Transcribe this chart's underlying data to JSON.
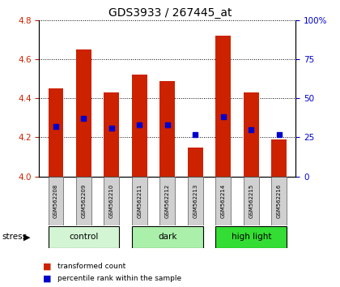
{
  "title": "GDS3933 / 267445_at",
  "samples": [
    "GSM562208",
    "GSM562209",
    "GSM562210",
    "GSM562211",
    "GSM562212",
    "GSM562213",
    "GSM562214",
    "GSM562215",
    "GSM562216"
  ],
  "transformed_counts": [
    4.45,
    4.65,
    4.43,
    4.52,
    4.49,
    4.15,
    4.72,
    4.43,
    4.19
  ],
  "percentile_ranks": [
    32,
    37,
    31,
    33,
    33,
    27,
    38,
    30,
    27
  ],
  "ylim_left": [
    4.0,
    4.8
  ],
  "ylim_right": [
    0,
    100
  ],
  "yticks_left": [
    4.0,
    4.2,
    4.4,
    4.6,
    4.8
  ],
  "yticks_right": [
    0,
    25,
    50,
    75,
    100
  ],
  "bar_color": "#cc2200",
  "dot_color": "#0000cc",
  "bar_width": 0.55,
  "groups": [
    {
      "label": "control",
      "start": 0,
      "end": 3,
      "color": "#d4f5d4"
    },
    {
      "label": "dark",
      "start": 3,
      "end": 6,
      "color": "#aaf0aa"
    },
    {
      "label": "high light",
      "start": 6,
      "end": 9,
      "color": "#33dd33"
    }
  ],
  "stress_label": "stress",
  "tick_label_color_left": "#cc2200",
  "tick_label_color_right": "#0000cc",
  "label_bg": "#d0d0d0",
  "legend_red_label": "transformed count",
  "legend_blue_label": "percentile rank within the sample"
}
